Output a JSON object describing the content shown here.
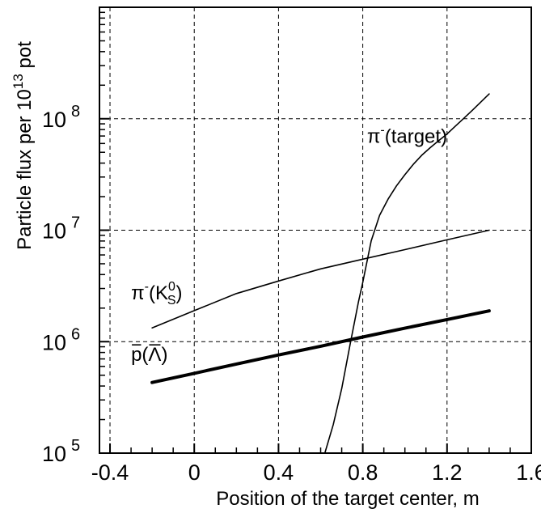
{
  "chart_data": {
    "type": "line",
    "title": "",
    "xlabel": "Position of the target center, m",
    "ylabel_parts": [
      "Particle flux per 10",
      "13",
      " pot"
    ],
    "x_scale": "linear",
    "y_scale": "log",
    "xlim": [
      -0.45,
      1.6
    ],
    "ylim": [
      100000,
      1000000000
    ],
    "x_ticks": [
      -0.4,
      0,
      0.4,
      0.8,
      1.2,
      1.6
    ],
    "x_tick_labels": [
      "-0.4",
      "0",
      "0.4",
      "0.8",
      "1.2",
      "1.6"
    ],
    "y_ticks": [
      100000,
      1000000,
      10000000,
      100000000
    ],
    "y_tick_labels": [
      {
        "base": "10",
        "exp": "5"
      },
      {
        "base": "10",
        "exp": "6"
      },
      {
        "base": "10",
        "exp": "7"
      },
      {
        "base": "10",
        "exp": "8"
      }
    ],
    "grid": true,
    "grid_style": "dashed",
    "series": [
      {
        "label_parts": [
          "π",
          "-",
          "(target)"
        ],
        "label_at": [
          0.82,
          61000000
        ],
        "color": "#000000",
        "linewidth": "thin",
        "x": [
          0.62,
          0.66,
          0.7,
          0.74,
          0.78,
          0.8,
          0.84,
          0.88,
          0.92,
          0.96,
          1.0,
          1.04,
          1.08,
          1.12,
          1.16,
          1.2,
          1.24,
          1.28,
          1.32,
          1.36,
          1.4
        ],
        "y": [
          100000,
          180000,
          380000,
          950000,
          2300000,
          3400000,
          8000000,
          13600000,
          19000000,
          25000000,
          31500000,
          39000000,
          47000000,
          55000000,
          63500000,
          73000000,
          86000000,
          101000000,
          119000000,
          141000000,
          167000000
        ]
      },
      {
        "label_parts": [
          "π",
          "-",
          "(K",
          "0",
          "S",
          ")"
        ],
        "label_at": [
          -0.3,
          2400000
        ],
        "color": "#000000",
        "linewidth": "thin",
        "x": [
          -0.2,
          0,
          0.2,
          0.4,
          0.6,
          0.8,
          1.0,
          1.2,
          1.4
        ],
        "y": [
          1330000,
          1900000,
          2700000,
          3500000,
          4500000,
          5500000,
          6700000,
          8200000,
          10000000
        ]
      },
      {
        "label_parts": [
          "p",
          "(",
          "Λ",
          ")"
        ],
        "label_at": [
          -0.3,
          670000
        ],
        "color": "#000000",
        "linewidth": "thick",
        "x": [
          -0.2,
          0,
          0.2,
          0.4,
          0.6,
          0.8,
          1.0,
          1.2,
          1.4
        ],
        "y": [
          430000,
          520000,
          630000,
          760000,
          910000,
          1100000,
          1320000,
          1580000,
          1890000
        ]
      }
    ]
  }
}
